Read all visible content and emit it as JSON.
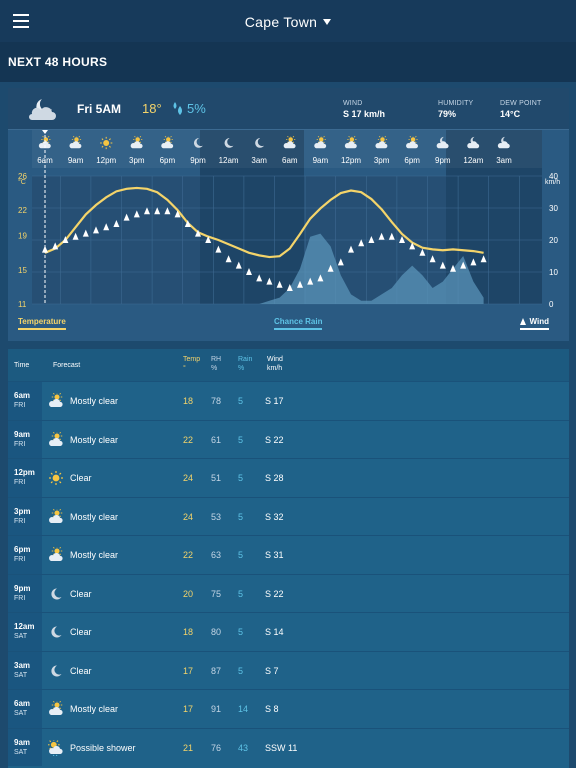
{
  "header": {
    "location": "Cape Town"
  },
  "section": {
    "title": "NEXT 48 HOURS"
  },
  "now": {
    "icon": "moon-cloud-icon",
    "day_time": "Fri 5AM",
    "temp": "18°",
    "rain": "5%",
    "wind_label": "WIND",
    "wind_value": "S 17 km/h",
    "humidity_label": "HUMIDITY",
    "humidity_value": "79%",
    "dewpoint_label": "DEW POINT",
    "dewpoint_value": "14°C"
  },
  "chart": {
    "hours": [
      "6am",
      "9am",
      "12pm",
      "3pm",
      "6pm",
      "9pm",
      "12am",
      "3am",
      "6am",
      "9am",
      "12pm",
      "3pm",
      "6pm",
      "9pm",
      "12am",
      "3am"
    ],
    "hour_icons": [
      "partly-cloudy-icon",
      "partly-cloudy-icon",
      "sun-icon",
      "partly-cloudy-icon",
      "partly-cloudy-icon",
      "moon-icon",
      "moon-icon",
      "moon-icon",
      "partly-cloudy-icon",
      "partly-cloudy-icon",
      "partly-cloudy-icon",
      "partly-cloudy-icon",
      "partly-cloudy-icon",
      "moon-cloud-icon",
      "moon-cloud-icon",
      "moon-cloud-icon"
    ],
    "left_unit": "°C",
    "right_unit": "km/h",
    "left_ticks": [
      "26",
      "22",
      "19",
      "15",
      "11"
    ],
    "right_ticks": [
      "40",
      "30",
      "20",
      "10",
      "0"
    ],
    "temp_series": [
      17,
      17.5,
      18.5,
      20,
      21.5,
      22.6,
      23.5,
      24.2,
      24.5,
      24.6,
      24.5,
      24.1,
      23.2,
      22,
      20.5,
      19.4,
      18.9,
      18.5,
      18,
      17.5,
      17,
      16.7,
      16.5,
      16.6,
      17.5,
      19.2,
      21,
      22.2,
      23.2,
      24,
      24.3,
      24.1,
      23.3,
      22.1,
      20.6,
      19.2,
      18.2,
      17.6,
      17.4,
      17.3,
      17.4,
      17.3,
      17.2,
      17
    ],
    "rain_series": [
      0,
      0,
      0,
      0,
      0,
      0,
      0,
      0,
      0,
      0,
      0,
      0,
      0,
      0,
      0,
      0,
      0,
      0,
      0,
      0,
      0,
      0,
      1,
      2,
      5,
      11,
      21,
      22,
      18,
      9,
      3,
      1,
      1,
      3,
      5,
      9,
      12,
      9,
      5,
      7,
      11,
      15,
      7,
      2
    ],
    "wind_series": [
      17,
      18,
      20,
      21,
      22,
      23,
      24,
      25,
      27,
      28,
      29,
      29,
      29,
      28,
      25,
      22,
      20,
      17,
      14,
      12,
      10,
      8,
      7,
      6,
      5,
      6,
      7,
      8,
      11,
      13,
      17,
      19,
      20,
      21,
      21,
      20,
      18,
      16,
      14,
      12,
      11,
      12,
      13,
      14
    ]
  },
  "legend": {
    "temperature": "Temperature",
    "chance_rain": "Chance Rain",
    "wind": "Wind"
  },
  "table": {
    "headers": {
      "time": "Time",
      "forecast": "Forecast",
      "temp": "Temp",
      "temp_unit": "°",
      "rh": "RH",
      "rh_unit": "%",
      "rain": "Rain",
      "rain_unit": "%",
      "wind": "Wind",
      "wind_unit": "km/h"
    },
    "rows": [
      {
        "time": "6am",
        "day": "FRI",
        "icon": "partly-cloudy-icon",
        "forecast": "Mostly clear",
        "temp": "18",
        "rh": "78",
        "rain": "5",
        "wind": "S 17"
      },
      {
        "time": "9am",
        "day": "FRI",
        "icon": "partly-cloudy-icon",
        "forecast": "Mostly clear",
        "temp": "22",
        "rh": "61",
        "rain": "5",
        "wind": "S 22"
      },
      {
        "time": "12pm",
        "day": "FRI",
        "icon": "sun-icon",
        "forecast": "Clear",
        "temp": "24",
        "rh": "51",
        "rain": "5",
        "wind": "S 28"
      },
      {
        "time": "3pm",
        "day": "FRI",
        "icon": "partly-cloudy-icon",
        "forecast": "Mostly clear",
        "temp": "24",
        "rh": "53",
        "rain": "5",
        "wind": "S 32"
      },
      {
        "time": "6pm",
        "day": "FRI",
        "icon": "partly-cloudy-icon",
        "forecast": "Mostly clear",
        "temp": "22",
        "rh": "63",
        "rain": "5",
        "wind": "S 31"
      },
      {
        "time": "9pm",
        "day": "FRI",
        "icon": "moon-icon",
        "forecast": "Clear",
        "temp": "20",
        "rh": "75",
        "rain": "5",
        "wind": "S 22"
      },
      {
        "time": "12am",
        "day": "SAT",
        "icon": "moon-icon",
        "forecast": "Clear",
        "temp": "18",
        "rh": "80",
        "rain": "5",
        "wind": "S 14"
      },
      {
        "time": "3am",
        "day": "SAT",
        "icon": "moon-icon",
        "forecast": "Clear",
        "temp": "17",
        "rh": "87",
        "rain": "5",
        "wind": "S 7"
      },
      {
        "time": "6am",
        "day": "SAT",
        "icon": "partly-cloudy-icon",
        "forecast": "Mostly clear",
        "temp": "17",
        "rh": "91",
        "rain": "14",
        "wind": "S 8"
      },
      {
        "time": "9am",
        "day": "SAT",
        "icon": "shower-icon",
        "forecast": "Possible shower",
        "temp": "21",
        "rh": "76",
        "rain": "43",
        "wind": "SSW 11"
      }
    ]
  },
  "colors": {
    "temp": "#f4d46a",
    "rain": "#5ec3e6",
    "wind": "#ffffff",
    "bg": "#1d4a6e"
  }
}
